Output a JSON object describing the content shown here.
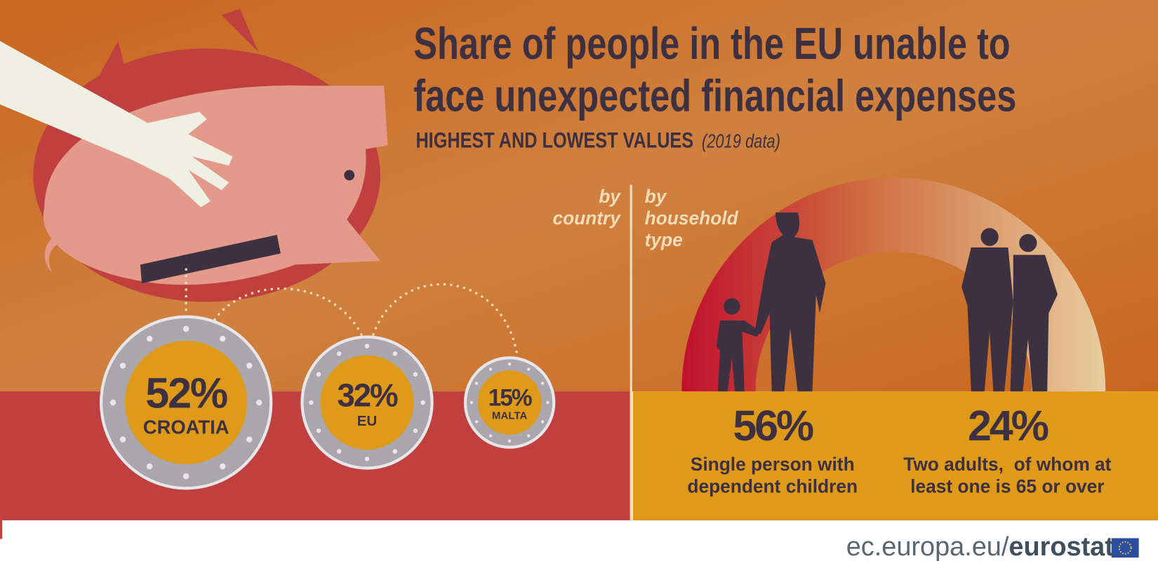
{
  "header": {
    "title": "Share of people in the EU unable to face unexpected financial expenses",
    "subtitle": "HIGHEST AND LOWEST VALUES",
    "subtitle_note": "(2019 data)"
  },
  "by_country": {
    "label": "by country",
    "coins": [
      {
        "value": "52%",
        "label": "CROATIA"
      },
      {
        "value": "32%",
        "label": "EU"
      },
      {
        "value": "15%",
        "label": "MALTA"
      }
    ]
  },
  "by_household": {
    "label": "by household type",
    "items": [
      {
        "value": "56%",
        "label": "Single person with dependent children"
      },
      {
        "value": "24%",
        "label": "Two adults,  of whom at least one is 65 or over"
      }
    ]
  },
  "footer": {
    "site": "ec.europa.eu/",
    "brand": "eurostat"
  }
}
